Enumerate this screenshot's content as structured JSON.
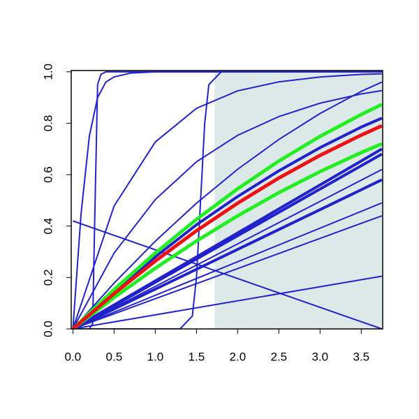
{
  "chart_data": {
    "type": "line",
    "xlim": [
      -0.02,
      3.76
    ],
    "ylim": [
      0,
      1.005
    ],
    "xticks": [
      {
        "value": 0,
        "label": "0.0"
      },
      0.5,
      {
        "value": 1,
        "label": "1.0"
      },
      1.5,
      {
        "value": 2,
        "label": "2.0"
      },
      2.5,
      {
        "value": 3,
        "label": "3.0"
      },
      3.5
    ],
    "yticks": [
      {
        "value": 0,
        "label": "0.0"
      },
      0.2,
      0.4,
      0.6,
      0.8,
      {
        "value": 1,
        "label": "1.0"
      }
    ],
    "shaded_region": {
      "x": [
        1.72,
        3.76
      ],
      "y": [
        0,
        1.0
      ],
      "color": "#dde9e9"
    },
    "x": [
      0,
      0.5,
      1,
      1.5,
      2,
      2.5,
      3,
      3.5,
      3.75
    ],
    "series": [
      {
        "color": "#2222cc",
        "width": 2,
        "x": [
          0,
          3.75
        ],
        "values": [
          0.42,
          0
        ]
      },
      {
        "color": "#2222cc",
        "width": 2,
        "x": [
          0,
          3.75
        ],
        "values": [
          0,
          0.205
        ]
      },
      {
        "color": "#2222cc",
        "width": 2,
        "x": [
          0,
          3.75
        ],
        "values": [
          0,
          0.44
        ]
      },
      {
        "color": "#2222cc",
        "width": 2,
        "x": [
          0,
          3.75
        ],
        "values": [
          0,
          0.49
        ]
      },
      {
        "color": "#2222cc",
        "width": 4,
        "x": [
          0,
          3.75
        ],
        "values": [
          0,
          0.58
        ]
      },
      {
        "color": "#2222cc",
        "width": 2,
        "x": [
          0,
          3.75
        ],
        "values": [
          0,
          0.62
        ]
      },
      {
        "color": "#2222cc",
        "width": 4,
        "x": [
          0,
          3.75
        ],
        "values": [
          0,
          0.68
        ]
      },
      {
        "color": "#2222cc",
        "width": 4,
        "x": [
          0,
          3.75
        ],
        "values": [
          0,
          0.7
        ]
      },
      {
        "color": "#2222cc",
        "width": 2,
        "values": [
          0,
          0.178,
          0.341,
          0.489,
          0.621,
          0.737,
          0.838,
          0.924,
          0.96
        ]
      },
      {
        "color": "#2222cc",
        "width": 2,
        "values": [
          0,
          0.478,
          0.727,
          0.858,
          0.926,
          0.961,
          0.98,
          0.99,
          0.992
        ]
      },
      {
        "color": "#2222cc",
        "width": 2,
        "values": [
          0,
          0.295,
          0.503,
          0.65,
          0.753,
          0.826,
          0.878,
          0.914,
          0.927
        ]
      },
      {
        "color": "#2222cc",
        "width": 4,
        "values": [
          0,
          0.145,
          0.28,
          0.405,
          0.515,
          0.615,
          0.705,
          0.785,
          0.82
        ]
      },
      {
        "color": "#2222cc",
        "width": 2,
        "x": [
          0,
          0.2,
          0.24,
          0.27,
          0.3,
          0.34,
          0.4,
          1,
          3.75
        ],
        "values": [
          0,
          0,
          0.02,
          0.5,
          0.95,
          0.99,
          1,
          1,
          1
        ]
      },
      {
        "color": "#2222cc",
        "width": 2,
        "x": [
          0,
          0.1,
          0.2,
          0.3,
          0.4,
          0.5,
          0.7,
          1,
          3.75
        ],
        "values": [
          0,
          0.45,
          0.75,
          0.9,
          0.96,
          0.98,
          0.995,
          1,
          1
        ]
      },
      {
        "color": "#2222cc",
        "width": 2,
        "x": [
          0,
          1.3,
          1.45,
          1.5,
          1.55,
          1.6,
          1.65,
          1.8,
          3.75
        ],
        "values": [
          0,
          0,
          0.05,
          0.2,
          0.5,
          0.8,
          0.95,
          1,
          1
        ]
      },
      {
        "color": "#22ee22",
        "width": 5,
        "values": [
          0,
          0.153,
          0.295,
          0.426,
          0.545,
          0.653,
          0.749,
          0.834,
          0.873
        ]
      },
      {
        "color": "#22ee22",
        "width": 5,
        "values": [
          0,
          0.122,
          0.236,
          0.342,
          0.44,
          0.53,
          0.612,
          0.686,
          0.72
        ]
      },
      {
        "color": "#ee1111",
        "width": 5,
        "values": [
          0,
          0.137,
          0.264,
          0.382,
          0.489,
          0.587,
          0.675,
          0.754,
          0.79
        ]
      }
    ]
  }
}
